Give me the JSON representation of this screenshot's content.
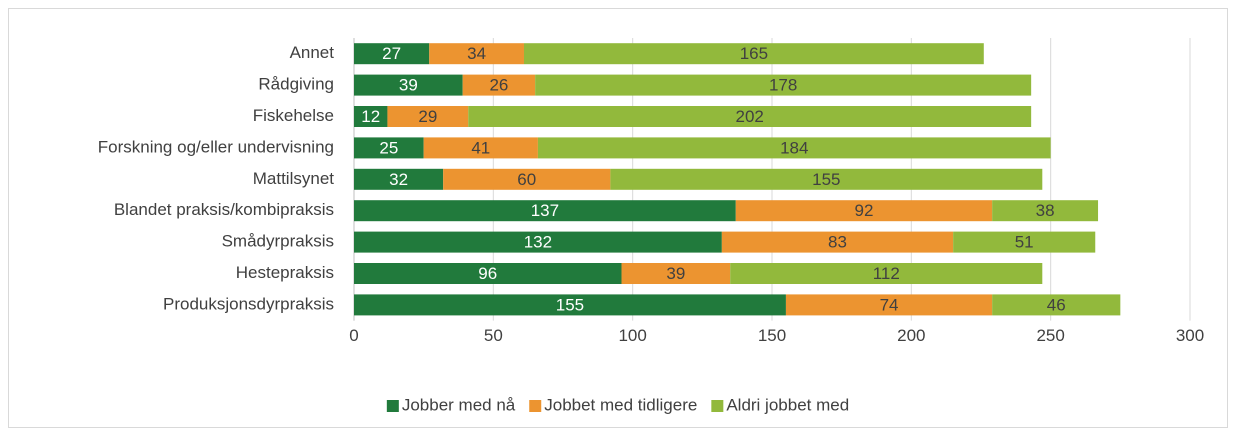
{
  "chart_data": {
    "type": "bar",
    "horizontal": true,
    "stacked": true,
    "categories": [
      "Annet",
      "Rådgiving",
      "Fiskehelse",
      "Forskning og/eller undervisning",
      "Mattilsynet",
      "Blandet praksis/kombipraksis",
      "Smådyrpraksis",
      "Hestepraksis",
      "Produksjonsdyrpraksis"
    ],
    "series": [
      {
        "name": "Jobber med nå",
        "color": "#217a3c",
        "values": [
          27,
          39,
          12,
          25,
          32,
          137,
          132,
          96,
          155
        ]
      },
      {
        "name": "Jobbet med tidligere",
        "color": "#ec9430",
        "values": [
          34,
          26,
          29,
          41,
          60,
          92,
          83,
          39,
          74
        ]
      },
      {
        "name": "Aldri jobbet med",
        "color": "#92b93c",
        "values": [
          165,
          178,
          202,
          184,
          155,
          38,
          51,
          112,
          46
        ]
      }
    ],
    "xlim": [
      0,
      300
    ],
    "xticks": [
      0,
      50,
      100,
      150,
      200,
      250,
      300
    ],
    "grid": true,
    "legend": "bottom"
  }
}
